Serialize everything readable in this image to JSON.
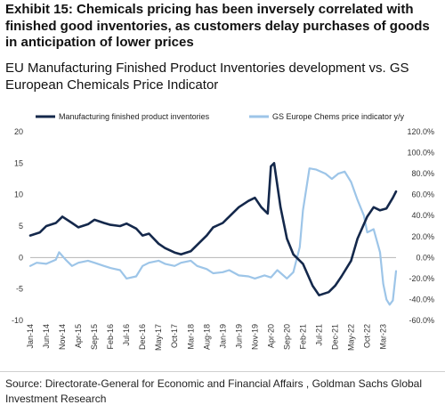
{
  "title": "Exhibit 15: Chemicals pricing has been inversely correlated with finished good inventories, as customers delay purchases of goods in anticipation of lower prices",
  "subtitle": "EU Manufacturing Finished Product Inventories development vs. GS European Chemicals Price Indicator",
  "source": "Source: Directorate-General for Economic and Financial Affairs , Goldman Sachs Global Investment Research",
  "chart_data": {
    "type": "line",
    "legend_position": "top",
    "grid": false,
    "x_tick_labels": [
      "Jan-14",
      "Jun-14",
      "Nov-14",
      "Apr-15",
      "Sep-15",
      "Feb-16",
      "Jul-16",
      "Dec-16",
      "May-17",
      "Oct-17",
      "Mar-18",
      "Aug-18",
      "Jan-19",
      "Jun-19",
      "Nov-19",
      "Apr-20",
      "Sep-20",
      "Feb-21",
      "Jul-21",
      "Dec-21",
      "May-22",
      "Oct-22",
      "Mar-23"
    ],
    "left_axis": {
      "ylim": [
        -10,
        20
      ],
      "ticks": [
        "20",
        "15",
        "10",
        "5",
        "0",
        "-5",
        "-10"
      ]
    },
    "right_axis": {
      "ylim": [
        -60,
        120
      ],
      "ticks": [
        "120.0%",
        "100.0%",
        "80.0%",
        "60.0%",
        "40.0%",
        "20.0%",
        "0.0%",
        "-20.0%",
        "-40.0%",
        "-60.0%"
      ]
    },
    "series": [
      {
        "name": "Manufacturing finished product inventories",
        "axis": "left",
        "color": "#14284b",
        "points": [
          [
            "Jan-14",
            3.5
          ],
          [
            "Apr-14",
            4.0
          ],
          [
            "Jun-14",
            5.0
          ],
          [
            "Sep-14",
            5.5
          ],
          [
            "Nov-14",
            6.5
          ],
          [
            "Feb-15",
            5.5
          ],
          [
            "Apr-15",
            4.8
          ],
          [
            "Jul-15",
            5.3
          ],
          [
            "Sep-15",
            6.0
          ],
          [
            "Dec-15",
            5.5
          ],
          [
            "Feb-16",
            5.2
          ],
          [
            "May-16",
            5.0
          ],
          [
            "Jul-16",
            5.4
          ],
          [
            "Oct-16",
            4.6
          ],
          [
            "Dec-16",
            3.5
          ],
          [
            "Feb-17",
            3.8
          ],
          [
            "May-17",
            2.2
          ],
          [
            "Jul-17",
            1.5
          ],
          [
            "Oct-17",
            0.8
          ],
          [
            "Dec-17",
            0.5
          ],
          [
            "Mar-18",
            1.0
          ],
          [
            "May-18",
            2.0
          ],
          [
            "Aug-18",
            3.5
          ],
          [
            "Oct-18",
            4.8
          ],
          [
            "Jan-19",
            5.5
          ],
          [
            "Mar-19",
            6.5
          ],
          [
            "Jun-19",
            8.0
          ],
          [
            "Sep-19",
            9.0
          ],
          [
            "Nov-19",
            9.5
          ],
          [
            "Jan-20",
            8.0
          ],
          [
            "Mar-20",
            7.0
          ],
          [
            "Apr-20",
            14.5
          ],
          [
            "May-20",
            15.0
          ],
          [
            "Jul-20",
            8.0
          ],
          [
            "Sep-20",
            3.0
          ],
          [
            "Nov-20",
            0.5
          ],
          [
            "Feb-21",
            -1.0
          ],
          [
            "May-21",
            -4.5
          ],
          [
            "Jul-21",
            -6.0
          ],
          [
            "Oct-21",
            -5.5
          ],
          [
            "Dec-21",
            -4.5
          ],
          [
            "Feb-22",
            -3.0
          ],
          [
            "May-22",
            -0.5
          ],
          [
            "Jul-22",
            3.0
          ],
          [
            "Oct-22",
            6.5
          ],
          [
            "Dec-22",
            8.0
          ],
          [
            "Feb-23",
            7.5
          ],
          [
            "Apr-23",
            7.8
          ],
          [
            "Jun-23",
            9.5
          ],
          [
            "Jul-23",
            10.5
          ]
        ]
      },
      {
        "name": "GS Europe Chems price indicator y/y",
        "axis": "right",
        "color": "#9dc5e8",
        "points": [
          [
            "Jan-14",
            -8
          ],
          [
            "Mar-14",
            -5
          ],
          [
            "Jun-14",
            -6
          ],
          [
            "Sep-14",
            -2
          ],
          [
            "Oct-14",
            5
          ],
          [
            "Dec-14",
            -2
          ],
          [
            "Feb-15",
            -8
          ],
          [
            "Apr-15",
            -5
          ],
          [
            "Jul-15",
            -3
          ],
          [
            "Sep-15",
            -5
          ],
          [
            "Dec-15",
            -8
          ],
          [
            "Feb-16",
            -10
          ],
          [
            "May-16",
            -12
          ],
          [
            "Jul-16",
            -20
          ],
          [
            "Oct-16",
            -18
          ],
          [
            "Dec-16",
            -8
          ],
          [
            "Feb-17",
            -5
          ],
          [
            "May-17",
            -3
          ],
          [
            "Jul-17",
            -6
          ],
          [
            "Oct-17",
            -8
          ],
          [
            "Dec-17",
            -5
          ],
          [
            "Mar-18",
            -3
          ],
          [
            "May-18",
            -8
          ],
          [
            "Aug-18",
            -11
          ],
          [
            "Oct-18",
            -15
          ],
          [
            "Jan-19",
            -14
          ],
          [
            "Mar-19",
            -12
          ],
          [
            "Jun-19",
            -17
          ],
          [
            "Sep-19",
            -18
          ],
          [
            "Nov-19",
            -20
          ],
          [
            "Feb-20",
            -17
          ],
          [
            "Apr-20",
            -19
          ],
          [
            "Jun-20",
            -12
          ],
          [
            "Sep-20",
            -20
          ],
          [
            "Nov-20",
            -14
          ],
          [
            "Jan-21",
            10
          ],
          [
            "Feb-21",
            45
          ],
          [
            "Apr-21",
            85
          ],
          [
            "Jun-21",
            84
          ],
          [
            "Sep-21",
            80
          ],
          [
            "Nov-21",
            75
          ],
          [
            "Jan-22",
            80
          ],
          [
            "Mar-22",
            82
          ],
          [
            "May-22",
            72
          ],
          [
            "Jul-22",
            55
          ],
          [
            "Sep-22",
            40
          ],
          [
            "Oct-22",
            24
          ],
          [
            "Dec-22",
            27
          ],
          [
            "Feb-23",
            5
          ],
          [
            "Mar-23",
            -25
          ],
          [
            "Apr-23",
            -40
          ],
          [
            "May-23",
            -45
          ],
          [
            "Jun-23",
            -41
          ],
          [
            "Jul-23",
            -13
          ]
        ]
      }
    ]
  }
}
